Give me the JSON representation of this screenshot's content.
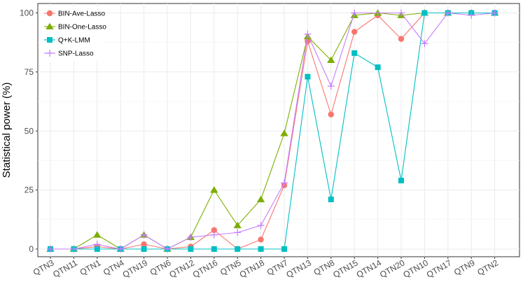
{
  "chart_data": {
    "type": "line",
    "title": "",
    "xlabel": "",
    "ylabel": "Statistical power (%)",
    "ylim": [
      0,
      100
    ],
    "yticks": [
      0,
      25,
      50,
      75,
      100
    ],
    "grid": true,
    "legend_position": "top-left",
    "categories": [
      "QTN3",
      "QTN11",
      "QTN1",
      "QTN4",
      "QTN19",
      "QTN6",
      "QTN12",
      "QTN16",
      "QTN5",
      "QTN18",
      "QTN7",
      "QTN13",
      "QTN8",
      "QTN15",
      "QTN14",
      "QTN20",
      "QTN10",
      "QTN17",
      "QTN9",
      "QTN2"
    ],
    "series": [
      {
        "name": "BIN-Ave-Lasso",
        "color": "#F8766D",
        "marker": "circle",
        "values": [
          0,
          0,
          1,
          0,
          2,
          0,
          1,
          8,
          0,
          4,
          27,
          88,
          57,
          92,
          99,
          89,
          100,
          100,
          100,
          100
        ]
      },
      {
        "name": "BIN-One-Lasso",
        "color": "#7CAE00",
        "marker": "triangle",
        "values": [
          0,
          0,
          6,
          0,
          6,
          0,
          5,
          25,
          10,
          21,
          49,
          90,
          80,
          99,
          100,
          99,
          100,
          100,
          100,
          100
        ]
      },
      {
        "name": "Q+K-LMM",
        "color": "#00BFC4",
        "marker": "square",
        "values": [
          0,
          0,
          0,
          0,
          0,
          0,
          0,
          0,
          0,
          0,
          0,
          73,
          21,
          83,
          77,
          29,
          100,
          100,
          100,
          100
        ]
      },
      {
        "name": "SNP-Lasso",
        "color": "#C77CFF",
        "marker": "plus",
        "values": [
          0,
          0,
          2,
          0,
          6,
          0,
          5,
          6,
          7,
          10,
          28,
          91,
          69,
          100,
          100,
          100,
          87,
          100,
          99,
          100
        ]
      }
    ]
  }
}
